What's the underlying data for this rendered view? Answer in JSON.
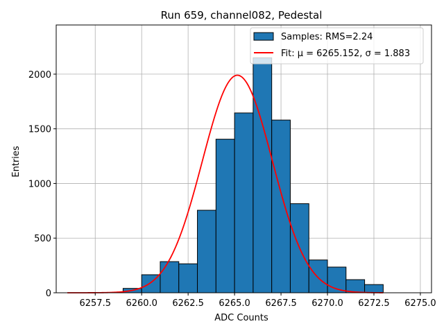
{
  "chart_data": {
    "type": "bar",
    "title": "Run 659, channel082, Pedestal",
    "xlabel": "ADC Counts",
    "ylabel": "Entries",
    "xlim": [
      6255.4,
      6275.6
    ],
    "ylim": [
      0,
      2450
    ],
    "grid": true,
    "bar_color": "#1f77b4",
    "bar_edge_color": "#000000",
    "fit_color": "#ff0000",
    "xticks": [
      6257.5,
      6260.0,
      6262.5,
      6265.0,
      6267.5,
      6270.0,
      6272.5,
      6275.0
    ],
    "xtick_labels": [
      "6257.5",
      "6260.0",
      "6262.5",
      "6265.0",
      "6267.5",
      "6270.0",
      "6272.5",
      "6275.0"
    ],
    "yticks": [
      0,
      500,
      1000,
      1500,
      2000
    ],
    "ytick_labels": [
      "0",
      "500",
      "1000",
      "1500",
      "2000"
    ],
    "bins": [
      {
        "start": 6259,
        "end": 6260,
        "value": 40
      },
      {
        "start": 6260,
        "end": 6261,
        "value": 165
      },
      {
        "start": 6261,
        "end": 6262,
        "value": 285
      },
      {
        "start": 6262,
        "end": 6263,
        "value": 265
      },
      {
        "start": 6263,
        "end": 6264,
        "value": 755
      },
      {
        "start": 6264,
        "end": 6265,
        "value": 1405
      },
      {
        "start": 6265,
        "end": 6266,
        "value": 1645
      },
      {
        "start": 6266,
        "end": 6267,
        "value": 2150
      },
      {
        "start": 6267,
        "end": 6268,
        "value": 1580
      },
      {
        "start": 6268,
        "end": 6269,
        "value": 815
      },
      {
        "start": 6269,
        "end": 6270,
        "value": 300
      },
      {
        "start": 6270,
        "end": 6271,
        "value": 235
      },
      {
        "start": 6271,
        "end": 6272,
        "value": 120
      },
      {
        "start": 6272,
        "end": 6273,
        "value": 75
      }
    ],
    "fit": {
      "mu": 6265.152,
      "sigma": 1.883,
      "amplitude": 1990,
      "x_min": 6256.0,
      "x_max": 6273.0
    },
    "legend": {
      "placement": "top-right",
      "samples_label": "Samples: RMS=2.24",
      "fit_label": "Fit: μ = 6265.152, σ = 1.883"
    }
  }
}
